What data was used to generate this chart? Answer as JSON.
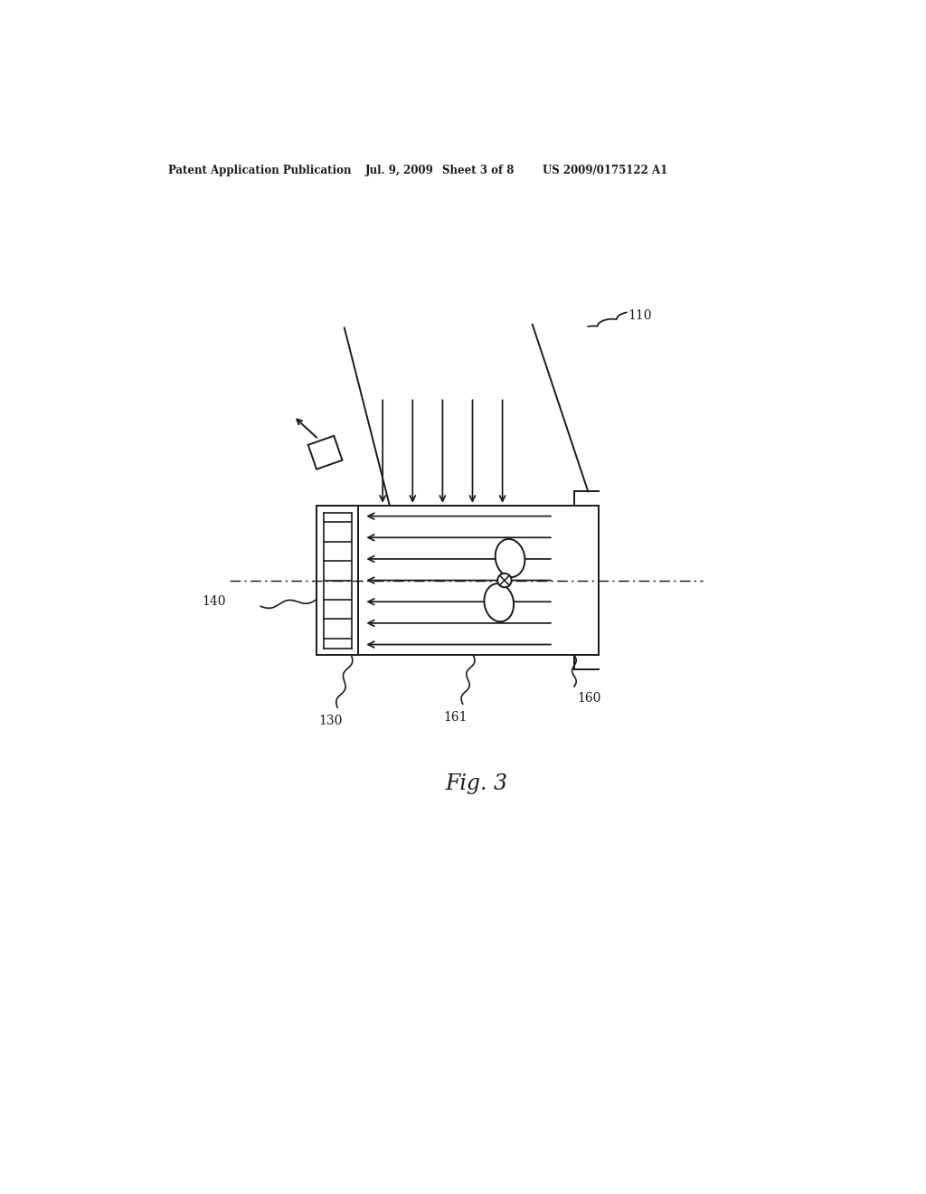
{
  "bg_color": "#ffffff",
  "line_color": "#1a1a1a",
  "header_text": "Patent Application Publication",
  "header_date": "Jul. 9, 2009",
  "header_sheet": "Sheet 3 of 8",
  "header_patent": "US 2009/0175122 A1",
  "fig_label": "Fig. 3",
  "label_110": "110",
  "label_130": "130",
  "label_140": "140",
  "label_160": "160",
  "label_161": "161"
}
